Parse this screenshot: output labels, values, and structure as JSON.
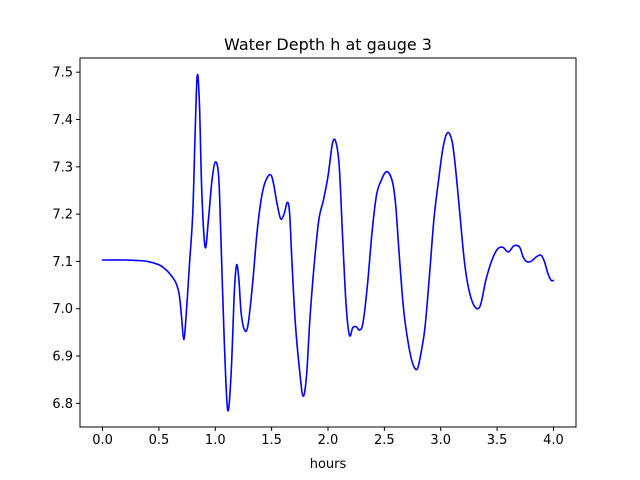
{
  "chart_data": {
    "type": "line",
    "title": "Water Depth h at gauge 3",
    "xlabel": "hours",
    "ylabel": "",
    "xlim": [
      -0.2,
      4.2
    ],
    "ylim": [
      6.75,
      7.53
    ],
    "grid": false,
    "x_ticks": [
      0.0,
      0.5,
      1.0,
      1.5,
      2.0,
      2.5,
      3.0,
      3.5,
      4.0
    ],
    "x_tick_labels": [
      "0.0",
      "0.5",
      "1.0",
      "1.5",
      "2.0",
      "2.5",
      "3.0",
      "3.5",
      "4.0"
    ],
    "y_ticks": [
      6.8,
      6.9,
      7.0,
      7.1,
      7.2,
      7.3,
      7.4,
      7.5
    ],
    "y_tick_labels": [
      "6.8",
      "6.9",
      "7.0",
      "7.1",
      "7.2",
      "7.3",
      "7.4",
      "7.5"
    ],
    "series": [
      {
        "color": "#0000ff",
        "x": [
          0.0,
          0.2,
          0.3,
          0.4,
          0.5,
          0.55,
          0.6,
          0.65,
          0.68,
          0.7,
          0.72,
          0.74,
          0.77,
          0.8,
          0.82,
          0.84,
          0.86,
          0.88,
          0.91,
          0.94,
          0.97,
          1.0,
          1.03,
          1.05,
          1.08,
          1.11,
          1.14,
          1.17,
          1.19,
          1.21,
          1.23,
          1.26,
          1.29,
          1.33,
          1.37,
          1.41,
          1.45,
          1.5,
          1.55,
          1.58,
          1.61,
          1.64,
          1.66,
          1.68,
          1.71,
          1.75,
          1.78,
          1.81,
          1.84,
          1.88,
          1.92,
          1.96,
          2.0,
          2.04,
          2.07,
          2.1,
          2.13,
          2.16,
          2.19,
          2.22,
          2.25,
          2.28,
          2.31,
          2.35,
          2.39,
          2.43,
          2.47,
          2.52,
          2.57,
          2.6,
          2.63,
          2.67,
          2.71,
          2.75,
          2.79,
          2.82,
          2.86,
          2.9,
          2.94,
          2.98,
          3.02,
          3.06,
          3.1,
          3.13,
          3.17,
          3.21,
          3.25,
          3.3,
          3.35,
          3.4,
          3.45,
          3.5,
          3.55,
          3.6,
          3.65,
          3.7,
          3.73,
          3.76,
          3.8,
          3.85,
          3.89,
          3.92,
          3.95,
          3.98,
          4.0
        ],
        "y": [
          7.103,
          7.103,
          7.102,
          7.1,
          7.093,
          7.085,
          7.073,
          7.055,
          7.03,
          6.985,
          6.935,
          6.98,
          7.09,
          7.2,
          7.36,
          7.493,
          7.43,
          7.25,
          7.13,
          7.19,
          7.27,
          7.31,
          7.28,
          7.15,
          6.93,
          6.786,
          6.86,
          7.04,
          7.093,
          7.06,
          6.99,
          6.955,
          6.965,
          7.05,
          7.16,
          7.235,
          7.272,
          7.28,
          7.22,
          7.19,
          7.2,
          7.225,
          7.2,
          7.1,
          6.97,
          6.865,
          6.815,
          6.86,
          6.98,
          7.1,
          7.19,
          7.23,
          7.28,
          7.35,
          7.352,
          7.3,
          7.15,
          7.01,
          6.944,
          6.96,
          6.962,
          6.955,
          6.97,
          7.05,
          7.16,
          7.24,
          7.27,
          7.29,
          7.27,
          7.22,
          7.12,
          7.0,
          6.93,
          6.885,
          6.872,
          6.9,
          6.96,
          7.07,
          7.19,
          7.27,
          7.34,
          7.372,
          7.355,
          7.3,
          7.2,
          7.1,
          7.04,
          7.005,
          7.006,
          7.06,
          7.1,
          7.125,
          7.13,
          7.12,
          7.133,
          7.13,
          7.11,
          7.1,
          7.1,
          7.11,
          7.113,
          7.1,
          7.075,
          7.06,
          7.06
        ]
      }
    ]
  }
}
